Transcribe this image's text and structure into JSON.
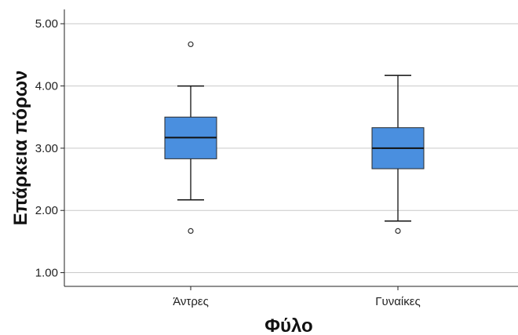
{
  "chart_data": {
    "type": "box",
    "xlabel": "Φύλο",
    "ylabel": "Επάρκεια πόρων",
    "ylim": [
      0.78,
      5.23
    ],
    "yticks": [
      "1.00",
      "2.00",
      "3.00",
      "4.00",
      "5.00"
    ],
    "ytick_values": [
      1,
      2,
      3,
      4,
      5
    ],
    "grid": "horizontal",
    "box_color": "#4a8fdf",
    "categories": [
      "Άντρες",
      "Γυναίκες"
    ],
    "boxes": [
      {
        "category": "Άντρες",
        "whisker_low": 2.17,
        "q1": 2.83,
        "median": 3.17,
        "q3": 3.5,
        "whisker_high": 4.0,
        "outliers": [
          4.67,
          1.67
        ]
      },
      {
        "category": "Γυναίκες",
        "whisker_low": 1.83,
        "q1": 2.67,
        "median": 3.0,
        "q3": 3.33,
        "whisker_high": 4.17,
        "outliers": [
          1.67
        ]
      }
    ]
  }
}
